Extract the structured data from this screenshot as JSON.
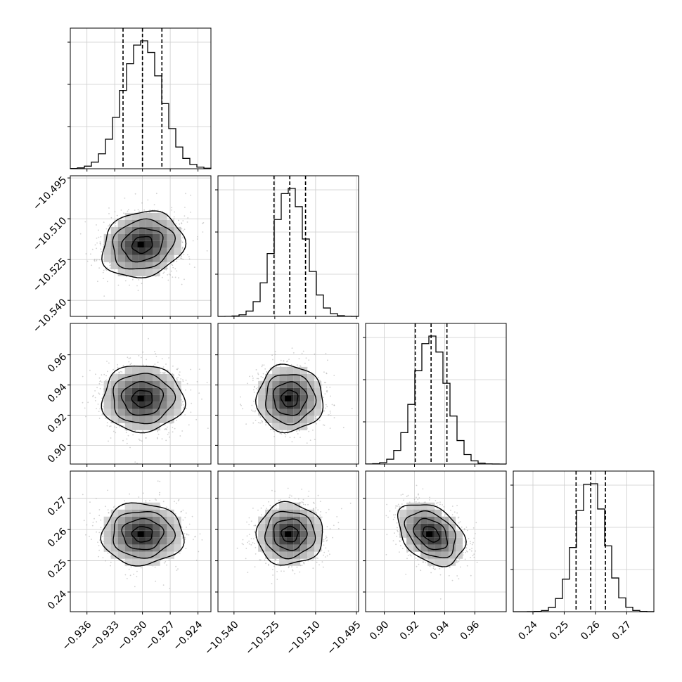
{
  "chart_data": {
    "type": "corner",
    "title": "",
    "grid": true,
    "parameters": [
      {
        "mean": -0.93,
        "sigma": 0.0021,
        "range": [
          -0.9378,
          -0.9226
        ],
        "quantiles": [
          -0.9321,
          -0.93,
          -0.9279
        ],
        "ticks": [
          -0.936,
          -0.933,
          -0.93,
          -0.927,
          -0.924
        ],
        "tick_labels": [
          "−0.936",
          "−0.933",
          "−0.930",
          "−0.927",
          "−0.924"
        ]
      },
      {
        "mean": -10.5195,
        "sigma": 0.0058,
        "range": [
          -10.5459,
          -10.4942
        ],
        "quantiles": [
          -10.5253,
          -10.5195,
          -10.5137
        ],
        "ticks": [
          -10.54,
          -10.525,
          -10.51,
          -10.495
        ],
        "tick_labels": [
          "−10.540",
          "−10.525",
          "−10.510",
          "−10.495"
        ]
      },
      {
        "mean": 0.931,
        "sigma": 0.0105,
        "range": [
          0.8876,
          0.9808
        ],
        "quantiles": [
          0.9205,
          0.931,
          0.9415
        ],
        "ticks": [
          0.9,
          0.92,
          0.94,
          0.96
        ],
        "tick_labels": [
          "0.90",
          "0.92",
          "0.94",
          "0.96"
        ]
      },
      {
        "mean": 0.2585,
        "sigma": 0.0047,
        "range": [
          0.2337,
          0.2787
        ],
        "quantiles": [
          0.2538,
          0.2585,
          0.2632
        ],
        "ticks": [
          0.24,
          0.25,
          0.26,
          0.27
        ],
        "tick_labels": [
          "0.24",
          "0.25",
          "0.26",
          "0.27"
        ]
      }
    ],
    "correlations": [
      [
        1,
        0.15,
        0.0,
        0.0
      ],
      [
        0.15,
        1,
        0.0,
        0.0
      ],
      [
        0.0,
        0.0,
        1,
        -0.35
      ],
      [
        0.0,
        0.0,
        -0.35,
        1
      ]
    ],
    "histogram_bins": 20,
    "contour_levels_sigma": [
      0.5,
      1.0,
      1.5,
      2.0
    ]
  }
}
